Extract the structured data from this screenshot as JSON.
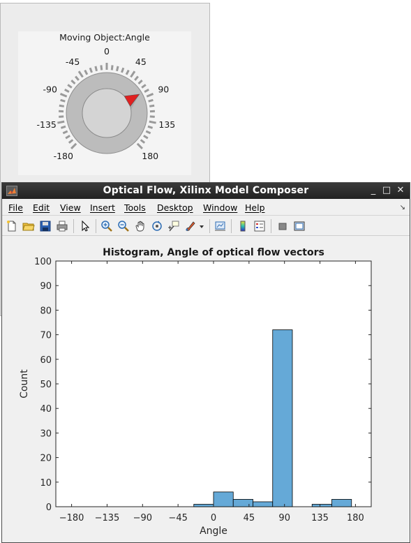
{
  "knob": {
    "title": "Moving Object:Angle",
    "tick_labels": [
      "-180",
      "-135",
      "-90",
      "-45",
      "0",
      "45",
      "90",
      "135",
      "180"
    ],
    "value": 80,
    "range": [
      -180,
      180
    ]
  },
  "window": {
    "title": "Optical Flow, Xilinx Model Composer",
    "minimize": "_",
    "maximize": "□",
    "close": "✕"
  },
  "menu": {
    "items": [
      "File",
      "Edit",
      "View",
      "Insert",
      "Tools",
      "Desktop",
      "Window",
      "Help"
    ],
    "overflow": "↘"
  },
  "toolbar": {
    "icons": [
      "new-figure-icon",
      "open-file-icon",
      "save-icon",
      "print-icon",
      "edit-plot-icon",
      "zoom-in-icon",
      "zoom-out-icon",
      "pan-icon",
      "rotate-3d-icon",
      "data-cursor-icon",
      "brush-icon",
      "link-plot-icon",
      "colorbar-icon",
      "legend-icon",
      "hide-plot-tools-icon",
      "show-plot-tools-icon"
    ]
  },
  "chart_data": {
    "type": "bar",
    "title": "Histogram, Angle of optical flow vectors",
    "xlabel": "Angle",
    "ylabel": "Count",
    "xlim": [
      -200,
      200
    ],
    "ylim": [
      0,
      100
    ],
    "xticks": [
      -180,
      -135,
      -90,
      -45,
      0,
      45,
      90,
      135,
      180
    ],
    "yticks": [
      0,
      10,
      20,
      30,
      40,
      50,
      60,
      70,
      80,
      90,
      100
    ],
    "bin_edges": [
      -25,
      0,
      25,
      50,
      75,
      100,
      125,
      150,
      175
    ],
    "values": [
      1,
      6,
      3,
      2,
      72,
      0,
      1,
      3,
      1
    ],
    "bar_color": "#65a9d7",
    "edge_color": "#000000"
  }
}
